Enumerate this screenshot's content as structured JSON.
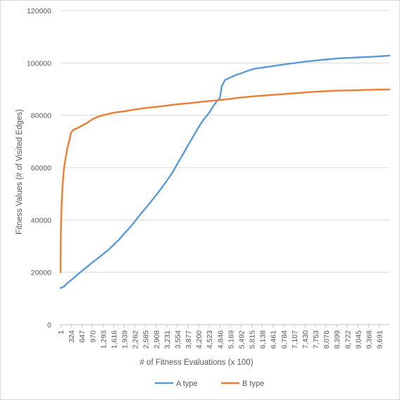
{
  "chart_data": {
    "type": "line",
    "title": "",
    "xlabel": "# of Fitness Evaluations (x 100)",
    "ylabel": "Fitness Values (# of Visited Edges)",
    "xlim": [
      1,
      10000
    ],
    "ylim": [
      0,
      120000
    ],
    "y_ticks": [
      0,
      20000,
      40000,
      60000,
      80000,
      100000,
      120000
    ],
    "y_tick_labels": [
      "0",
      "20000",
      "40000",
      "60000",
      "80000",
      "100000",
      "120000"
    ],
    "x_ticks": [
      1,
      324,
      647,
      970,
      1293,
      1616,
      1939,
      2262,
      2585,
      2908,
      3231,
      3554,
      3877,
      4200,
      4523,
      4846,
      5169,
      5492,
      5815,
      6138,
      6461,
      6784,
      7107,
      7430,
      7753,
      8076,
      8399,
      8722,
      9045,
      9368,
      9691
    ],
    "x_tick_labels": [
      "1",
      "324",
      "647",
      "970",
      "1,293",
      "1,616",
      "1,939",
      "2,262",
      "2,585",
      "2,908",
      "3,231",
      "3,554",
      "3,877",
      "4,200",
      "4,523",
      "4,846",
      "5,169",
      "5,492",
      "5,815",
      "6,138",
      "6,461",
      "6,784",
      "7,107",
      "7,430",
      "7,753",
      "8,076",
      "8,399",
      "8,722",
      "9,045",
      "9,368",
      "9,691"
    ],
    "grid": true,
    "legend_position": "bottom",
    "series": [
      {
        "name": "A type",
        "color": "#5B9BD5",
        "x": [
          1,
          100,
          200,
          300,
          400,
          500,
          650,
          800,
          970,
          1150,
          1300,
          1450,
          1616,
          1780,
          1939,
          2100,
          2262,
          2420,
          2585,
          2750,
          2908,
          3060,
          3231,
          3400,
          3554,
          3720,
          3877,
          4040,
          4200,
          4360,
          4523,
          4620,
          4700,
          4760,
          4800,
          4846,
          4900,
          5000,
          5169,
          5350,
          5492,
          5650,
          5815,
          6000,
          6138,
          6300,
          6461,
          6620,
          6784,
          6950,
          7107,
          7270,
          7430,
          7600,
          7753,
          7900,
          8076,
          8250,
          8399,
          8560,
          8722,
          8900,
          9045,
          9200,
          9368,
          9530,
          9691,
          9850,
          10000
        ],
        "values": [
          14000,
          14500,
          15800,
          16800,
          17800,
          19000,
          20500,
          22000,
          23800,
          25500,
          27000,
          28500,
          30500,
          32500,
          34800,
          37000,
          39500,
          42000,
          44500,
          47000,
          49500,
          52000,
          55000,
          58000,
          61500,
          65000,
          68500,
          72000,
          75500,
          78500,
          81000,
          83000,
          84500,
          85500,
          86000,
          86500,
          91000,
          93500,
          94500,
          95500,
          96000,
          96800,
          97500,
          98000,
          98200,
          98500,
          98800,
          99100,
          99400,
          99700,
          99900,
          100200,
          100500,
          100700,
          100900,
          101100,
          101300,
          101500,
          101700,
          101800,
          101900,
          102000,
          102100,
          102200,
          102300,
          102400,
          102500,
          102650,
          102800
        ]
      },
      {
        "name": "B type",
        "color": "#ED7D31",
        "x": [
          1,
          10,
          30,
          60,
          100,
          150,
          200,
          260,
          324,
          400,
          500,
          647,
          800,
          970,
          1150,
          1293,
          1450,
          1616,
          1939,
          2262,
          2585,
          2908,
          3231,
          3554,
          3877,
          4200,
          4523,
          4846,
          5169,
          5492,
          5815,
          6138,
          6461,
          6784,
          7107,
          7430,
          7753,
          8076,
          8399,
          8722,
          9045,
          9368,
          9691,
          10000
        ],
        "values": [
          20000,
          35000,
          45000,
          53000,
          59000,
          63500,
          67000,
          70000,
          73500,
          74500,
          75000,
          76000,
          77000,
          78500,
          79500,
          80000,
          80500,
          81000,
          81500,
          82200,
          82800,
          83200,
          83700,
          84200,
          84600,
          85000,
          85400,
          85800,
          86300,
          86800,
          87200,
          87500,
          87800,
          88100,
          88400,
          88700,
          89000,
          89200,
          89400,
          89500,
          89600,
          89700,
          89800,
          89850
        ]
      }
    ]
  }
}
